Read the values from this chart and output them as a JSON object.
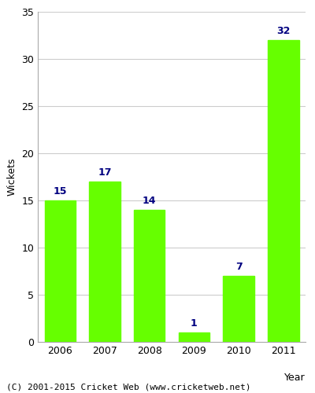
{
  "years": [
    "2006",
    "2007",
    "2008",
    "2009",
    "2010",
    "2011"
  ],
  "values": [
    15,
    17,
    14,
    1,
    7,
    32
  ],
  "bar_color": "#66ff00",
  "bar_edgecolor": "#66ff00",
  "label_color": "#000080",
  "xlabel": "Year",
  "ylabel": "Wickets",
  "ylim": [
    0,
    35
  ],
  "yticks": [
    0,
    5,
    10,
    15,
    20,
    25,
    30,
    35
  ],
  "footnote": "(C) 2001-2015 Cricket Web (www.cricketweb.net)",
  "background_color": "#ffffff",
  "plot_background_color": "#ffffff",
  "label_fontsize": 9,
  "axis_label_fontsize": 9,
  "tick_fontsize": 9,
  "footnote_fontsize": 8,
  "bar_width": 0.7
}
